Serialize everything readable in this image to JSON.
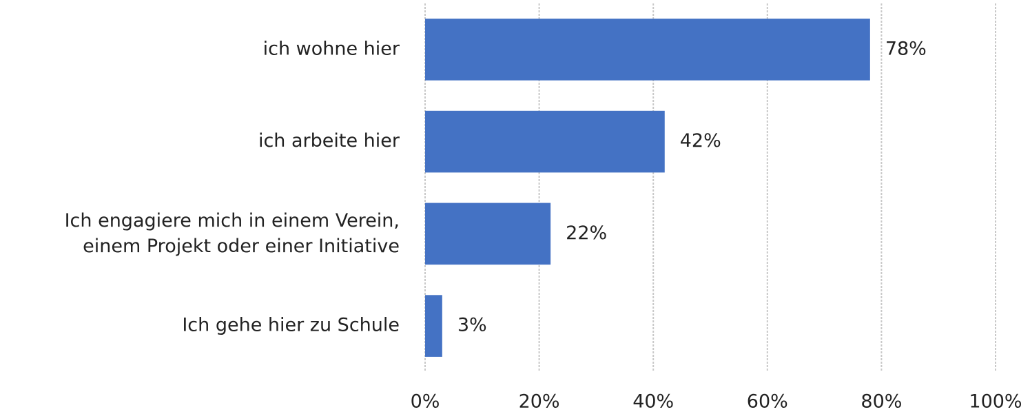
{
  "chart_data": {
    "type": "hbar",
    "categories": [
      "ich wohne hier",
      "ich arbeite hier",
      "Ich engagiere mich in einem Verein,\neinem Projekt oder einer Initiative",
      "Ich gehe hier zu Schule"
    ],
    "values": [
      78,
      42,
      22,
      3
    ],
    "value_labels": [
      "78%",
      "42%",
      "22%",
      "3%"
    ],
    "color": "#4472c4",
    "xlim": [
      0,
      100
    ],
    "xticks": [
      {
        "value": 0,
        "label": "0%"
      },
      {
        "value": 20,
        "label": "20%"
      },
      {
        "value": 40,
        "label": "40%"
      },
      {
        "value": 60,
        "label": "60%"
      },
      {
        "value": 80,
        "label": "80%"
      },
      {
        "value": 100,
        "label": "100%"
      }
    ],
    "grid": true
  }
}
